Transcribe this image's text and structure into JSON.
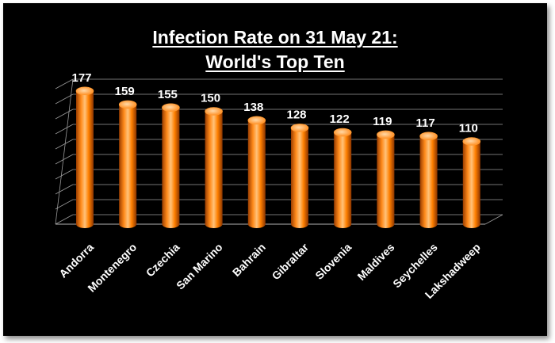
{
  "chart_data": {
    "type": "bar",
    "title_line1": "Infection Rate on  31 May 21:",
    "title_line2": "World's Top Ten",
    "categories": [
      "Andorra",
      "Montenegro",
      "Czechia",
      "San Marino",
      "Bahrain",
      "Gibraltar",
      "Slovenia",
      "Maldives",
      "Seychelles",
      "Lakshadweep"
    ],
    "values": [
      177,
      159,
      155,
      150,
      138,
      128,
      122,
      119,
      117,
      110
    ],
    "ylim": [
      0,
      180
    ],
    "grid": true,
    "legend": "none",
    "bar_color": "#ff8000",
    "background": "#000000"
  }
}
